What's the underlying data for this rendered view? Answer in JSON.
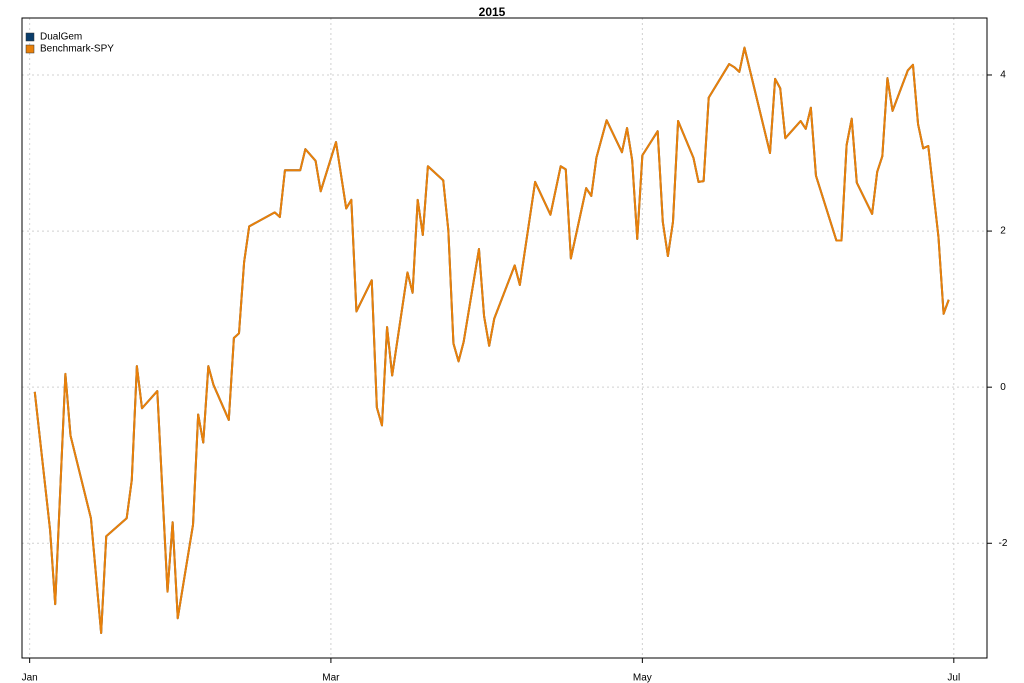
{
  "chart_data": {
    "type": "line",
    "title": "2015",
    "x": [
      2,
      5,
      6,
      8,
      9,
      13,
      15,
      16,
      20,
      21,
      22,
      23,
      26,
      28,
      29,
      30,
      33,
      34,
      35,
      36,
      37,
      40,
      41,
      42,
      43,
      44,
      49,
      50,
      51,
      54,
      55,
      57,
      58,
      61,
      63,
      64,
      65,
      68,
      69,
      70,
      71,
      72,
      75,
      76,
      77,
      78,
      79,
      82,
      83,
      84,
      85,
      86,
      89,
      90,
      91,
      92,
      96,
      97,
      100,
      103,
      105,
      106,
      107,
      110,
      111,
      112,
      114,
      117,
      118,
      119,
      120,
      121,
      124,
      125,
      126,
      127,
      128,
      131,
      132,
      133,
      134,
      138,
      139,
      140,
      141,
      146,
      147,
      148,
      149,
      152,
      153,
      154,
      155,
      159,
      160,
      161,
      162,
      163,
      166,
      167,
      168,
      169,
      170,
      173,
      174,
      175,
      176,
      177,
      179,
      180,
      181
    ],
    "series": [
      {
        "name": "DualGem",
        "color": "#0b3d6b",
        "values": [
          -0.06,
          -1.83,
          -2.78,
          0.17,
          -0.62,
          -1.68,
          -3.15,
          -1.91,
          -1.68,
          -1.19,
          0.27,
          -0.27,
          -0.05,
          -2.62,
          -1.73,
          -2.96,
          -1.76,
          -0.35,
          -0.71,
          0.27,
          0.03,
          -0.42,
          0.63,
          0.69,
          1.6,
          2.06,
          2.24,
          2.18,
          2.78,
          2.78,
          3.05,
          2.9,
          2.51,
          3.14,
          2.29,
          2.4,
          0.97,
          1.37,
          -0.26,
          -0.49,
          0.77,
          0.15,
          1.47,
          1.21,
          2.4,
          1.95,
          2.83,
          2.65,
          2.01,
          0.56,
          0.33,
          0.58,
          1.77,
          0.91,
          0.53,
          0.88,
          1.56,
          1.31,
          2.63,
          2.21,
          2.83,
          2.79,
          1.65,
          2.55,
          2.45,
          2.94,
          3.42,
          3.01,
          3.32,
          2.91,
          1.9,
          2.97,
          3.28,
          2.12,
          1.68,
          2.12,
          3.41,
          2.94,
          2.63,
          2.64,
          3.71,
          4.14,
          4.1,
          4.04,
          4.35,
          3.0,
          3.95,
          3.83,
          3.19,
          3.41,
          3.31,
          3.58,
          2.71,
          1.88,
          1.88,
          3.1,
          3.44,
          2.62,
          2.22,
          2.76,
          2.96,
          3.96,
          3.54,
          4.06,
          4.13,
          3.37,
          3.06,
          3.09,
          1.92,
          0.94,
          1.12
        ]
      },
      {
        "name": "Benchmark-SPY",
        "color": "#e8800a",
        "values": [
          -0.06,
          -1.83,
          -2.78,
          0.17,
          -0.62,
          -1.68,
          -3.15,
          -1.91,
          -1.68,
          -1.19,
          0.27,
          -0.27,
          -0.05,
          -2.62,
          -1.73,
          -2.96,
          -1.76,
          -0.35,
          -0.71,
          0.27,
          0.03,
          -0.42,
          0.63,
          0.69,
          1.6,
          2.06,
          2.24,
          2.18,
          2.78,
          2.78,
          3.05,
          2.9,
          2.51,
          3.14,
          2.29,
          2.4,
          0.97,
          1.37,
          -0.26,
          -0.49,
          0.77,
          0.15,
          1.47,
          1.21,
          2.4,
          1.95,
          2.83,
          2.65,
          2.01,
          0.56,
          0.33,
          0.58,
          1.77,
          0.91,
          0.53,
          0.88,
          1.56,
          1.31,
          2.63,
          2.21,
          2.83,
          2.79,
          1.65,
          2.55,
          2.45,
          2.94,
          3.42,
          3.01,
          3.32,
          2.91,
          1.9,
          2.97,
          3.28,
          2.12,
          1.68,
          2.12,
          3.41,
          2.94,
          2.63,
          2.64,
          3.71,
          4.14,
          4.1,
          4.04,
          4.35,
          3.0,
          3.95,
          3.83,
          3.19,
          3.41,
          3.31,
          3.58,
          2.71,
          1.88,
          1.88,
          3.1,
          3.44,
          2.62,
          2.22,
          2.76,
          2.96,
          3.96,
          3.54,
          4.06,
          4.13,
          3.37,
          3.06,
          3.09,
          1.92,
          0.94,
          1.12
        ]
      }
    ],
    "xlim": [
      -0.5,
      188.5
    ],
    "xticks": [
      {
        "value": 1,
        "label": "Jan"
      },
      {
        "value": 60,
        "label": "Mar"
      },
      {
        "value": 121,
        "label": "May"
      },
      {
        "value": 182,
        "label": "Jul"
      }
    ],
    "ylim": [
      -3.47,
      4.73
    ],
    "yticks": [
      -2,
      0,
      2,
      4
    ],
    "grid": true,
    "legend": "top-left"
  }
}
